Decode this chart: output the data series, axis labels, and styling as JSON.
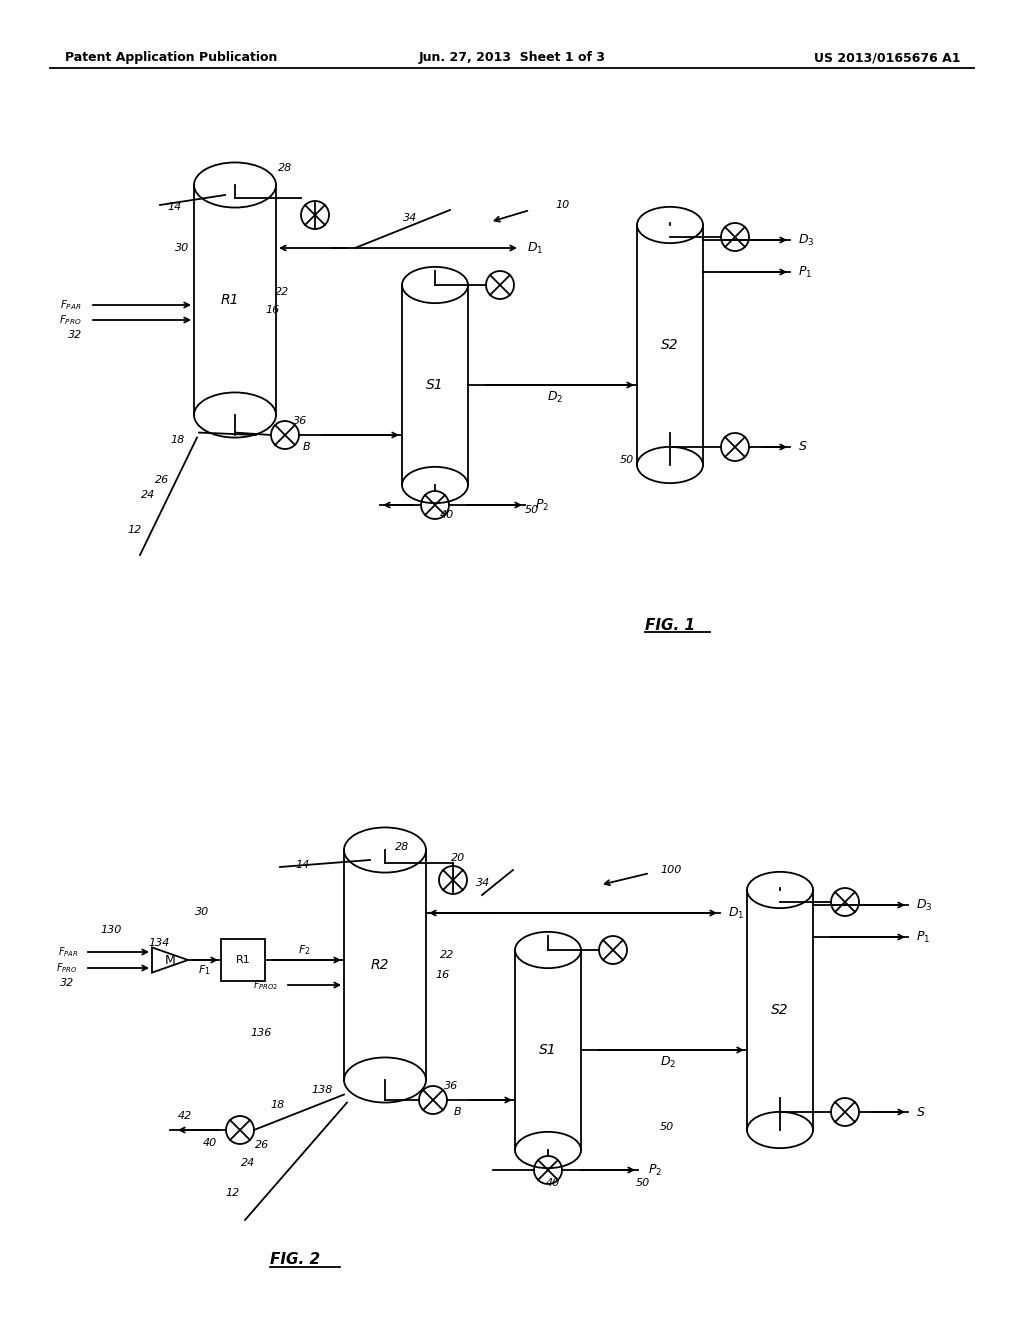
{
  "header_left": "Patent Application Publication",
  "header_center": "Jun. 27, 2013  Sheet 1 of 3",
  "header_right": "US 2013/0165676 A1",
  "bg_color": "#ffffff",
  "line_color": "#000000",
  "text_color": "#000000"
}
